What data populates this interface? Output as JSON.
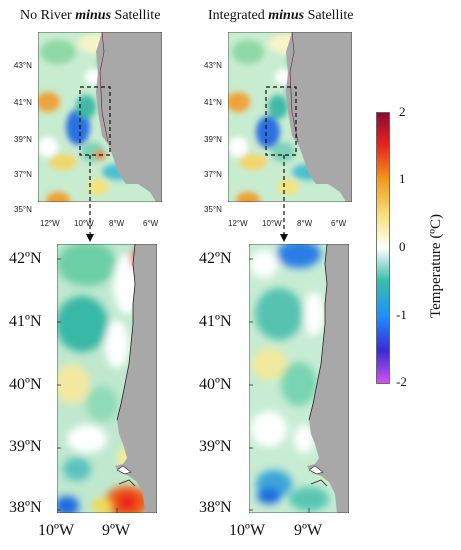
{
  "figure": {
    "left_panel_title": {
      "prefix": "No River ",
      "emph": "minus",
      "suffix": " Satellite"
    },
    "right_panel_title": {
      "prefix": "Integrated ",
      "emph": "minus",
      "suffix": " Satellite"
    }
  },
  "chart_data": [
    {
      "type": "heatmap",
      "title": "No River minus Satellite",
      "region": "overview",
      "x_ticks": [
        "12°W",
        "10°W",
        "8°W",
        "6°W"
      ],
      "y_ticks": [
        "43°N",
        "41°N",
        "39°N",
        "37°N",
        "35°N"
      ]
    },
    {
      "type": "heatmap",
      "title": "Integrated minus Satellite",
      "region": "overview",
      "x_ticks": [
        "12°W",
        "10°W",
        "8°W",
        "6°W"
      ],
      "y_ticks": [
        "43°N",
        "41°N",
        "39°N",
        "37°N",
        "35°N"
      ]
    },
    {
      "type": "heatmap",
      "region": "zoom",
      "x_ticks": [
        "10ºW",
        "9ºW"
      ],
      "y_ticks": [
        "42ºN",
        "41ºN",
        "40ºN",
        "39ºN",
        "38ºN"
      ]
    },
    {
      "type": "heatmap",
      "region": "zoom",
      "x_ticks": [
        "10ºW",
        "9ºW"
      ],
      "y_ticks": [
        "42ºN",
        "41ºN",
        "40ºN",
        "39ºN",
        "38ºN"
      ]
    }
  ],
  "colorbar": {
    "title": "Temperature (ºC)",
    "ticks": [
      "2",
      "1",
      "0",
      "-1",
      "-2"
    ],
    "range": [
      -2,
      2
    ],
    "colors": [
      "#d255f0",
      "#3a2ad6",
      "#1e90ff",
      "#37bfa8",
      "#ffffff",
      "#f5e27a",
      "#f39a1e",
      "#e8231c",
      "#8a0a34"
    ]
  }
}
